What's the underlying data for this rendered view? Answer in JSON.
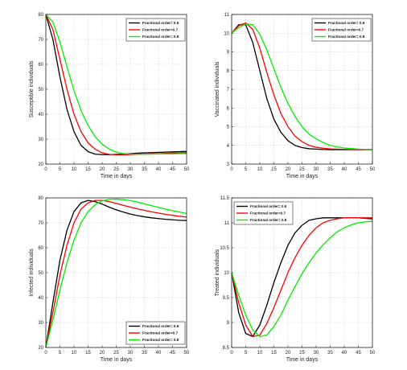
{
  "colors": {
    "order_0_6": "#000000",
    "order_0_7": "#ff0000",
    "order_0_8": "#00ee00"
  },
  "chart_data": [
    {
      "type": "line",
      "xlabel": "Time in days",
      "ylabel": "Susceptible individuals",
      "xlim": [
        0,
        50
      ],
      "ylim": [
        20,
        80
      ],
      "xticks": [
        "0",
        "5",
        "10",
        "15",
        "20",
        "25",
        "30",
        "35",
        "40",
        "45",
        "50"
      ],
      "yticks": [
        "20",
        "30",
        "40",
        "50",
        "60",
        "70",
        "80"
      ],
      "legend_position": "top-right",
      "grid": true,
      "x": [
        0,
        2.5,
        5,
        7.5,
        10,
        12.5,
        15,
        17.5,
        20,
        22.5,
        25,
        27.5,
        30,
        32.5,
        35,
        37.5,
        40,
        42.5,
        45,
        47.5,
        50
      ],
      "series": [
        {
          "name": "Fractional order= 0.6",
          "color": "#000000",
          "values": [
            80,
            70,
            55,
            42,
            33,
            27.5,
            25,
            24,
            23.8,
            23.8,
            23.9,
            24,
            24.2,
            24.4,
            24.5,
            24.6,
            24.7,
            24.8,
            24.9,
            25,
            25.1
          ]
        },
        {
          "name": "Fractional order=0.7",
          "color": "#ff0000",
          "values": [
            80,
            74,
            62,
            50,
            40,
            33,
            28.5,
            26,
            24.5,
            23.9,
            23.7,
            23.7,
            23.8,
            23.9,
            24,
            24.1,
            24.2,
            24.3,
            24.4,
            24.5,
            24.6
          ]
        },
        {
          "name": "Fractional order= 0.8",
          "color": "#00ee00",
          "values": [
            80,
            77,
            69,
            59,
            49.5,
            41.5,
            35.5,
            31,
            28,
            26,
            24.8,
            24.2,
            24,
            24,
            24,
            24,
            24.1,
            24.1,
            24.1,
            24.2,
            24.2
          ]
        }
      ]
    },
    {
      "type": "line",
      "xlabel": "Time in days",
      "ylabel": "Vaccinated individuals",
      "xlim": [
        0,
        50
      ],
      "ylim": [
        3,
        11
      ],
      "xticks": [
        "0",
        "5",
        "10",
        "15",
        "20",
        "25",
        "30",
        "35",
        "40",
        "45",
        "50"
      ],
      "yticks": [
        "3",
        "4",
        "5",
        "6",
        "7",
        "8",
        "9",
        "10",
        "11"
      ],
      "legend_position": "top-right",
      "grid": true,
      "x": [
        0,
        2.5,
        5,
        7.5,
        10,
        12.5,
        15,
        17.5,
        20,
        22.5,
        25,
        27.5,
        30,
        32.5,
        35,
        37.5,
        40,
        42.5,
        45,
        47.5,
        50
      ],
      "series": [
        {
          "name": "Fractional order= 0.6",
          "color": "#000000",
          "values": [
            10,
            10.45,
            10.45,
            9.5,
            8,
            6.5,
            5.4,
            4.7,
            4.25,
            4,
            3.88,
            3.82,
            3.8,
            3.78,
            3.77,
            3.77,
            3.77,
            3.77,
            3.77,
            3.77,
            3.77
          ]
        },
        {
          "name": "Fractional order=0.7",
          "color": "#ff0000",
          "values": [
            10,
            10.4,
            10.55,
            10.2,
            9.2,
            7.9,
            6.7,
            5.7,
            5,
            4.5,
            4.2,
            4,
            3.9,
            3.85,
            3.81,
            3.8,
            3.79,
            3.78,
            3.78,
            3.78,
            3.78
          ]
        },
        {
          "name": "Fractional order= 0.8",
          "color": "#00ee00",
          "values": [
            10,
            10.3,
            10.5,
            10.45,
            9.95,
            9.1,
            8.1,
            7.1,
            6.25,
            5.55,
            5,
            4.6,
            4.35,
            4.15,
            4,
            3.92,
            3.86,
            3.83,
            3.8,
            3.79,
            3.78
          ]
        }
      ]
    },
    {
      "type": "line",
      "xlabel": "Time in days",
      "ylabel": "Infected individuals",
      "xlim": [
        0,
        50
      ],
      "ylim": [
        20,
        80
      ],
      "xticks": [
        "0",
        "5",
        "10",
        "15",
        "20",
        "25",
        "30",
        "35",
        "40",
        "45",
        "50"
      ],
      "yticks": [
        "20",
        "30",
        "40",
        "50",
        "60",
        "70",
        "80"
      ],
      "legend_position": "bottom-right",
      "grid": true,
      "x": [
        0,
        2.5,
        5,
        7.5,
        10,
        12.5,
        15,
        17.5,
        20,
        22.5,
        25,
        27.5,
        30,
        32.5,
        35,
        37.5,
        40,
        42.5,
        45,
        47.5,
        50
      ],
      "series": [
        {
          "name": "Fractional order= 0.6",
          "color": "#000000",
          "values": [
            20,
            38,
            55,
            67,
            74.5,
            78,
            79,
            78.5,
            77.5,
            76.3,
            75.2,
            74.3,
            73.5,
            72.9,
            72.4,
            72,
            71.7,
            71.4,
            71.2,
            71,
            70.9
          ]
        },
        {
          "name": "Fractional order=0.7",
          "color": "#ff0000",
          "values": [
            20,
            34,
            49,
            61,
            70,
            75.5,
            78,
            79,
            79,
            78.5,
            77.8,
            77,
            76.3,
            75.6,
            75,
            74.4,
            73.9,
            73.4,
            73,
            72.6,
            72.3
          ]
        },
        {
          "name": "Fractional order= 0.8",
          "color": "#00ee00",
          "values": [
            20,
            31,
            43,
            54,
            63,
            70,
            74.5,
            77.3,
            78.8,
            79.4,
            79.5,
            79.3,
            78.9,
            78.3,
            77.6,
            76.9,
            76.2,
            75.5,
            74.9,
            74.3,
            73.7
          ]
        }
      ]
    },
    {
      "type": "line",
      "xlabel": "Time in days",
      "ylabel": "Treated individuals",
      "xlim": [
        0,
        50
      ],
      "ylim": [
        8.5,
        11.5
      ],
      "xticks": [
        "0",
        "5",
        "10",
        "15",
        "20",
        "25",
        "30",
        "35",
        "40",
        "45",
        "50"
      ],
      "yticks": [
        "8.5",
        "9",
        "9.5",
        "10",
        "10.5",
        "11",
        "11.5"
      ],
      "legend_position": "top-left",
      "grid": true,
      "x": [
        0,
        2.5,
        5,
        7.5,
        10,
        12.5,
        15,
        17.5,
        20,
        22.5,
        25,
        27.5,
        30,
        32.5,
        35,
        37.5,
        40,
        42.5,
        45,
        47.5,
        50
      ],
      "series": [
        {
          "name": "Fractional order= 0.6",
          "color": "#000000",
          "values": [
            10,
            9.2,
            8.78,
            8.72,
            8.95,
            9.35,
            9.8,
            10.2,
            10.55,
            10.8,
            10.95,
            11.05,
            11.08,
            11.1,
            11.1,
            11.1,
            11.1,
            11.1,
            11.1,
            11.09,
            11.08
          ]
        },
        {
          "name": "Fractional order=0.7",
          "color": "#ff0000",
          "values": [
            10,
            9.4,
            8.95,
            8.72,
            8.75,
            8.98,
            9.3,
            9.65,
            10,
            10.3,
            10.55,
            10.75,
            10.9,
            11,
            11.05,
            11.08,
            11.1,
            11.1,
            11.1,
            11.1,
            11.1
          ]
        },
        {
          "name": "Fractional order= 0.8",
          "color": "#00ee00",
          "values": [
            10,
            9.55,
            9.15,
            8.85,
            8.72,
            8.75,
            8.92,
            9.15,
            9.45,
            9.72,
            9.98,
            10.2,
            10.4,
            10.56,
            10.7,
            10.82,
            10.9,
            10.96,
            11,
            11.02,
            11.03
          ]
        }
      ]
    }
  ]
}
